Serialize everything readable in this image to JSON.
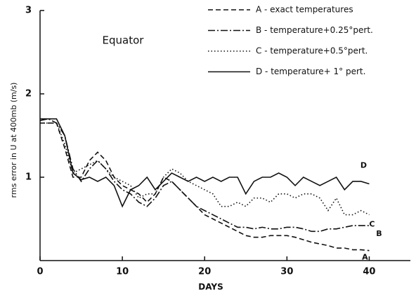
{
  "chart_data": {
    "type": "line",
    "annotation": "Equator",
    "x_label": "DAYS",
    "y_label": "rms error in U at 400mb (m/s)",
    "x": [
      0,
      1,
      2,
      3,
      4,
      5,
      6,
      7,
      8,
      9,
      10,
      11,
      12,
      13,
      14,
      15,
      16,
      17,
      18,
      19,
      20,
      21,
      22,
      23,
      24,
      25,
      26,
      27,
      28,
      29,
      30,
      31,
      32,
      33,
      34,
      35,
      36,
      37,
      38,
      39,
      40
    ],
    "series": [
      {
        "name": "A - exact temperatures",
        "label": "A",
        "color": "#111111",
        "dash": "dashed",
        "values": [
          1.65,
          1.65,
          1.65,
          1.35,
          1.0,
          1.0,
          1.2,
          1.3,
          1.2,
          1.0,
          0.9,
          0.85,
          0.8,
          0.7,
          0.8,
          1.0,
          0.95,
          0.85,
          0.75,
          0.65,
          0.55,
          0.5,
          0.45,
          0.4,
          0.35,
          0.3,
          0.28,
          0.28,
          0.3,
          0.3,
          0.3,
          0.28,
          0.25,
          0.22,
          0.2,
          0.18,
          0.15,
          0.15,
          0.13,
          0.13,
          0.12
        ]
      },
      {
        "name": "B - temperature+0.25°pert.",
        "label": "B",
        "color": "#111111",
        "dash": "dashdot",
        "values": [
          1.68,
          1.7,
          1.65,
          1.5,
          1.1,
          0.95,
          1.1,
          1.2,
          1.1,
          0.95,
          0.85,
          0.8,
          0.7,
          0.65,
          0.75,
          0.9,
          0.95,
          0.85,
          0.75,
          0.65,
          0.6,
          0.55,
          0.5,
          0.45,
          0.4,
          0.4,
          0.38,
          0.4,
          0.38,
          0.38,
          0.4,
          0.4,
          0.38,
          0.35,
          0.35,
          0.38,
          0.38,
          0.4,
          0.42,
          0.42,
          0.42
        ]
      },
      {
        "name": "C - temperature+0.5°pert.",
        "label": "C",
        "color": "#111111",
        "dash": "dotted",
        "values": [
          1.65,
          1.65,
          1.65,
          1.4,
          1.05,
          1.1,
          1.15,
          1.2,
          1.1,
          1.0,
          0.95,
          0.9,
          0.75,
          0.8,
          0.8,
          1.0,
          1.1,
          1.05,
          0.95,
          0.9,
          0.85,
          0.8,
          0.65,
          0.65,
          0.7,
          0.65,
          0.75,
          0.75,
          0.7,
          0.8,
          0.8,
          0.75,
          0.8,
          0.8,
          0.75,
          0.6,
          0.75,
          0.55,
          0.55,
          0.6,
          0.55
        ]
      },
      {
        "name": "D - temperature+ 1° pert.",
        "label": "D",
        "color": "#111111",
        "dash": "solid",
        "values": [
          1.7,
          1.7,
          1.7,
          1.5,
          1.05,
          0.97,
          1.0,
          0.95,
          1.0,
          0.9,
          0.65,
          0.85,
          0.9,
          1.0,
          0.85,
          0.95,
          1.05,
          1.0,
          0.95,
          1.0,
          0.95,
          1.0,
          0.95,
          1.0,
          1.0,
          0.8,
          0.95,
          1.0,
          1.0,
          1.05,
          1.0,
          0.9,
          1.0,
          0.95,
          0.9,
          0.95,
          1.0,
          0.85,
          0.95,
          0.95,
          0.92
        ]
      }
    ],
    "xlim": [
      0,
      45
    ],
    "ylim": [
      0,
      3
    ],
    "xticks": [
      0,
      10,
      20,
      30,
      40
    ],
    "yticks": [
      1,
      2,
      3
    ],
    "grid": false
  }
}
